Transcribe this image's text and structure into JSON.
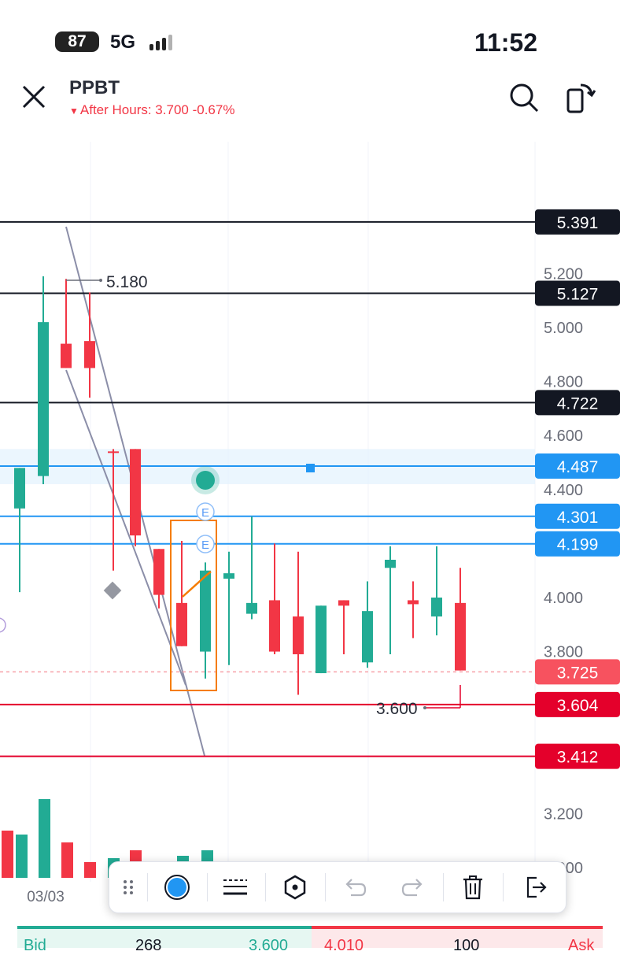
{
  "status_bar": {
    "battery": "87",
    "network": "5G",
    "time": "11:52"
  },
  "header": {
    "symbol": "PPBT",
    "after_hours": "After Hours: 3.700 -0.67%",
    "icons": [
      "close-icon",
      "search-icon",
      "rotate-screen-icon"
    ]
  },
  "colors": {
    "up": "#22ab94",
    "down": "#f23645",
    "line_blue": "#2196f3",
    "line_black": "#131722",
    "line_red": "#e4002b",
    "trend_gray": "#8b8ea8",
    "orange": "#f57c00"
  },
  "chart_data": {
    "type": "candlestick",
    "price_axis_ticks": [
      "5.200",
      "5.000",
      "4.800",
      "4.600",
      "4.400",
      "4.000",
      "3.800",
      "3.200",
      "3.000"
    ],
    "x_label": "03/03",
    "price_range": [
      3.0,
      5.4
    ],
    "candles": [
      {
        "open": 4.33,
        "close": 4.48,
        "high": 4.48,
        "low": 4.02
      },
      {
        "open": 4.45,
        "close": 5.02,
        "high": 5.19,
        "low": 4.42
      },
      {
        "open": 4.94,
        "close": 4.85,
        "high": 5.18,
        "low": 4.85
      },
      {
        "open": 4.95,
        "close": 4.85,
        "high": 5.13,
        "low": 4.74
      },
      {
        "open": null,
        "close": null,
        "high": 4.55,
        "low": 4.1
      },
      {
        "open": 4.55,
        "close": 4.23,
        "high": 4.55,
        "low": 4.19
      },
      {
        "open": 4.18,
        "close": 4.01,
        "high": 4.18,
        "low": 3.96
      },
      {
        "open": 3.98,
        "close": 3.82,
        "high": 4.21,
        "low": 3.82
      },
      {
        "open": 3.8,
        "close": 4.1,
        "high": 4.13,
        "low": 3.7
      },
      {
        "open": 4.07,
        "close": 4.09,
        "high": 4.17,
        "low": 3.75
      },
      {
        "open": 3.94,
        "close": 3.98,
        "high": 4.3,
        "low": 3.92
      },
      {
        "open": 3.99,
        "close": 3.8,
        "high": 4.2,
        "low": 3.79
      },
      {
        "open": 3.93,
        "close": 3.79,
        "high": 4.17,
        "low": 3.64
      },
      {
        "open": 3.72,
        "close": 3.97,
        "high": 3.97,
        "low": 3.72
      },
      {
        "open": 3.99,
        "close": 3.97,
        "high": 3.99,
        "low": 3.79
      },
      {
        "open": 3.76,
        "close": 3.95,
        "high": 4.06,
        "low": 3.74
      },
      {
        "open": 4.11,
        "close": 4.14,
        "high": 4.19,
        "low": 3.79
      },
      {
        "open": 3.99,
        "close": 3.98,
        "high": 4.06,
        "low": 3.85
      },
      {
        "open": 3.93,
        "close": 4.0,
        "high": 4.19,
        "low": 3.86
      },
      {
        "open": 3.98,
        "close": 3.73,
        "high": 4.11,
        "low": 3.73
      }
    ],
    "horizontal_levels": [
      {
        "label": "5.391",
        "style": "black"
      },
      {
        "label": "5.127",
        "style": "black"
      },
      {
        "label": "4.722",
        "style": "black"
      },
      {
        "label": "4.487",
        "style": "blue"
      },
      {
        "label": "4.301",
        "style": "blue"
      },
      {
        "label": "4.199",
        "style": "blue"
      },
      {
        "label": "3.725",
        "style": "current-price"
      },
      {
        "label": "3.604",
        "style": "red"
      },
      {
        "label": "3.412",
        "style": "red"
      }
    ],
    "annotations": [
      "5.180",
      "3.600"
    ],
    "event_markers": [
      "E",
      "E"
    ],
    "volume_bars": [
      {
        "value": 60,
        "up": false
      },
      {
        "value": 55,
        "up": true
      },
      {
        "value": 100,
        "up": true
      },
      {
        "value": 45,
        "up": false
      },
      {
        "value": 20,
        "up": false
      },
      {
        "value": 25,
        "up": true
      },
      {
        "value": 35,
        "up": false
      },
      {
        "value": 12,
        "up": true
      },
      {
        "value": 28,
        "up": true
      },
      {
        "value": 35,
        "up": true
      },
      {
        "value": 8,
        "up": true
      }
    ]
  },
  "toolbar": {
    "tools": [
      "drag-handle-icon",
      "color-swatch-icon",
      "line-style-icon",
      "settings-hexagon-icon",
      "undo-icon",
      "redo-icon",
      "trash-icon",
      "exit-icon"
    ]
  },
  "order_book": {
    "bid_label": "Bid",
    "bid_size": "268",
    "bid_price": "3.600",
    "ask_price": "4.010",
    "ask_size": "100",
    "ask_label": "Ask"
  }
}
